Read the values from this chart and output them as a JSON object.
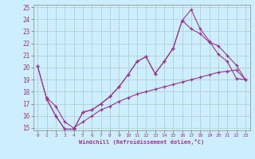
{
  "xlabel": "Windchill (Refroidissement éolien,°C)",
  "xlim": [
    0,
    23
  ],
  "ylim": [
    15,
    25
  ],
  "xticks": [
    0,
    1,
    2,
    3,
    4,
    5,
    6,
    7,
    8,
    9,
    10,
    11,
    12,
    13,
    14,
    15,
    16,
    17,
    18,
    19,
    20,
    21,
    22,
    23
  ],
  "yticks": [
    15,
    16,
    17,
    18,
    19,
    20,
    21,
    22,
    23,
    24,
    25
  ],
  "bg_color": "#cceeff",
  "grid_color": "#aacccc",
  "line_color": "#993399",
  "line1_x": [
    0,
    1,
    2,
    3,
    4,
    5,
    6,
    7,
    8,
    9,
    10,
    11,
    12,
    13,
    14,
    15,
    16,
    17,
    18,
    19,
    20,
    21,
    22,
    23
  ],
  "line1_y": [
    20.1,
    17.4,
    16.0,
    14.9,
    14.9,
    16.3,
    16.5,
    17.0,
    17.6,
    18.4,
    19.4,
    20.5,
    20.9,
    19.5,
    20.5,
    21.6,
    23.9,
    24.8,
    23.2,
    22.2,
    21.1,
    20.5,
    19.1,
    19.0
  ],
  "line2_x": [
    0,
    1,
    2,
    3,
    4,
    5,
    6,
    7,
    8,
    9,
    10,
    11,
    12,
    13,
    14,
    15,
    16,
    17,
    18,
    19,
    20,
    21,
    22,
    23
  ],
  "line2_y": [
    20.1,
    17.4,
    16.0,
    14.9,
    14.9,
    16.3,
    16.5,
    17.0,
    17.6,
    18.4,
    19.4,
    20.5,
    20.9,
    19.5,
    20.5,
    21.6,
    23.9,
    23.2,
    22.8,
    22.1,
    21.8,
    21.0,
    20.2,
    19.0
  ],
  "line3_x": [
    1,
    2,
    3,
    4,
    5,
    6,
    7,
    8,
    9,
    10,
    11,
    12,
    13,
    14,
    15,
    16,
    17,
    18,
    19,
    20,
    21,
    22,
    23
  ],
  "line3_y": [
    17.5,
    16.8,
    15.5,
    15.0,
    15.5,
    16.0,
    16.5,
    16.8,
    17.2,
    17.5,
    17.8,
    18.0,
    18.2,
    18.4,
    18.6,
    18.8,
    19.0,
    19.2,
    19.4,
    19.6,
    19.7,
    19.8,
    19.0
  ]
}
